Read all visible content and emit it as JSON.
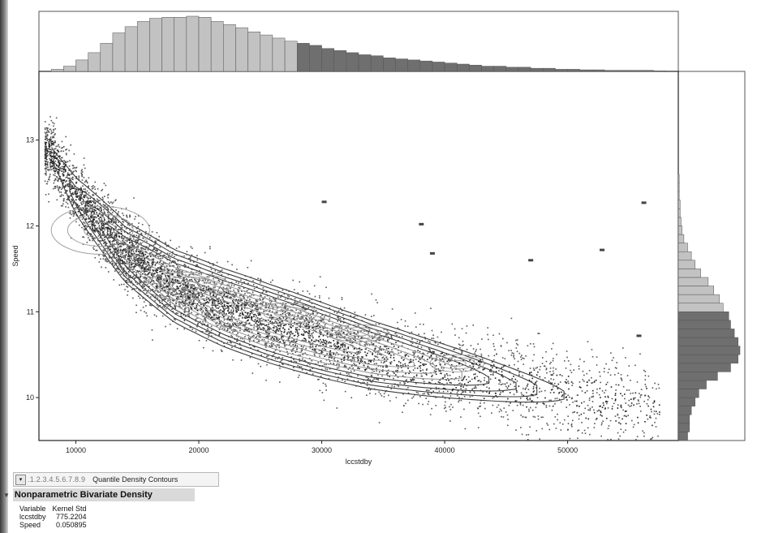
{
  "chart_data": {
    "type": "scatter",
    "xlabel": "lccstdby",
    "ylabel": "Speed",
    "xlim": [
      7000,
      59000
    ],
    "ylim": [
      9.5,
      13.8
    ],
    "xticks": [
      10000,
      20000,
      30000,
      40000,
      50000
    ],
    "yticks": [
      10,
      11,
      12,
      13
    ],
    "density_ridge": [
      [
        8000,
        12.85
      ],
      [
        10000,
        12.35
      ],
      [
        14000,
        11.7
      ],
      [
        18000,
        11.3
      ],
      [
        22000,
        11.05
      ],
      [
        26000,
        10.85
      ],
      [
        30000,
        10.67
      ],
      [
        34000,
        10.5
      ],
      [
        38000,
        10.37
      ],
      [
        42000,
        10.25
      ],
      [
        46000,
        10.13
      ],
      [
        50000,
        10.02
      ],
      [
        55000,
        9.9
      ],
      [
        58000,
        9.82
      ]
    ],
    "contour_inner": [
      [
        12000,
        11.95,
        4000,
        0.28
      ],
      [
        19000,
        11.3,
        3500,
        0.16
      ],
      [
        27000,
        10.98,
        2600,
        0.12
      ],
      [
        33000,
        10.75,
        2400,
        0.1
      ],
      [
        41000,
        10.4,
        2200,
        0.1
      ]
    ],
    "outlier_points": [
      [
        30200,
        12.28
      ],
      [
        38100,
        12.02
      ],
      [
        39000,
        11.68
      ],
      [
        47000,
        11.6
      ],
      [
        52800,
        11.72
      ],
      [
        56200,
        12.27
      ],
      [
        55800,
        10.72
      ]
    ],
    "top_histogram": {
      "bin_start": 8000,
      "bin_width": 1000,
      "counts": [
        2,
        5,
        11,
        18,
        27,
        37,
        43,
        48,
        51,
        52,
        52,
        53,
        52,
        48,
        45,
        42,
        38,
        35,
        32,
        29,
        27,
        25,
        22,
        20,
        18,
        16,
        15,
        13,
        12,
        11,
        10,
        9,
        8,
        7,
        6,
        5,
        5,
        4,
        4,
        3,
        3,
        2,
        2,
        1.5,
        1.5,
        1,
        1,
        1,
        1,
        0.5
      ],
      "highlight_from_index": 20
    },
    "right_histogram": {
      "bin_start": 9.5,
      "bin_width": 0.1,
      "counts": [
        5,
        6,
        6,
        7,
        9,
        11,
        15,
        21,
        28,
        32,
        33,
        32,
        30,
        28,
        27,
        24,
        22,
        19,
        16,
        12,
        9,
        7,
        5,
        3,
        2,
        1.5,
        1,
        1,
        0.5,
        0.5,
        0.5
      ],
      "highlight_below": 10.95
    }
  },
  "contour_controls": {
    "levels_label": ".1.2.3.4.5.6.7.8.9",
    "title": "Quantile Density Contours"
  },
  "panel": {
    "title": "Nonparametric Bivariate Density",
    "columns": [
      "Variable",
      "Kernel Std"
    ],
    "rows": [
      {
        "variable": "lccstdby",
        "kernel_std": "775.2204"
      },
      {
        "variable": "Speed",
        "kernel_std": "0.050895"
      }
    ]
  },
  "colors": {
    "histogram_light": "#c2c2c2",
    "histogram_dark": "#6f6f6f",
    "contour": "#3d3d3d",
    "contour_inner": "#9a9a9a",
    "point": "#555555",
    "point_dark": "#1e1e1e"
  }
}
